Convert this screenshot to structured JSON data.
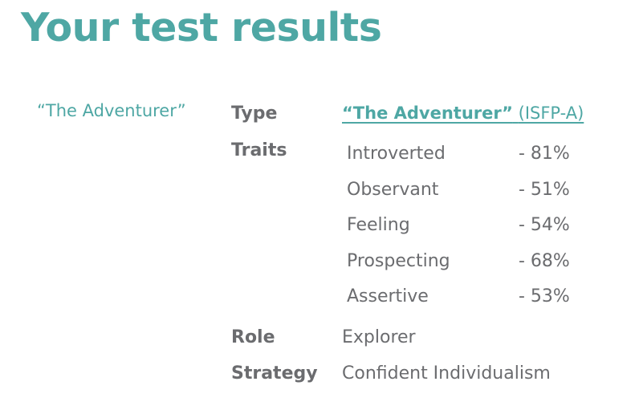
{
  "header": {
    "title": "Your test results"
  },
  "sidebar": {
    "type_name": "“The Adventurer”"
  },
  "results": {
    "type_label": "Type",
    "type_link_name": "“The Adventurer”",
    "type_link_code": "(ISFP-A)",
    "traits_label": "Traits",
    "traits": [
      {
        "name": "Introverted",
        "percent": "-  81%"
      },
      {
        "name": "Observant",
        "percent": "-  51%"
      },
      {
        "name": "Feeling",
        "percent": "-  54%"
      },
      {
        "name": "Prospecting",
        "percent": "-  68%"
      },
      {
        "name": "Assertive",
        "percent": "-  53%"
      }
    ],
    "role_label": "Role",
    "role_value": "Explorer",
    "strategy_label": "Strategy",
    "strategy_value": "Confident Individualism"
  },
  "colors": {
    "accent": "#4ea7a4",
    "text": "#6b6c6f",
    "background": "#ffffff"
  }
}
